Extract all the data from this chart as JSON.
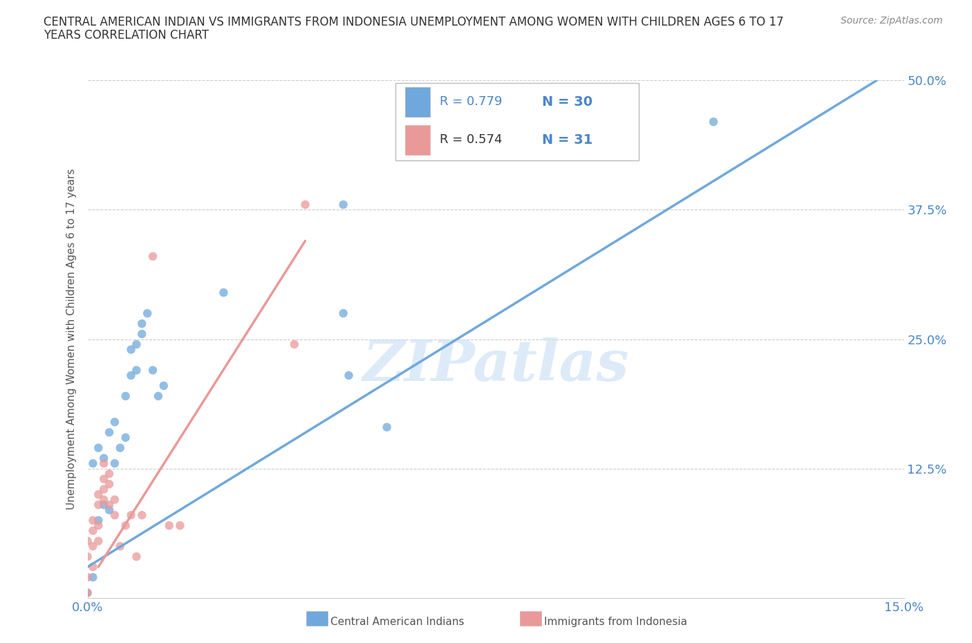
{
  "title_line1": "CENTRAL AMERICAN INDIAN VS IMMIGRANTS FROM INDONESIA UNEMPLOYMENT AMONG WOMEN WITH CHILDREN AGES 6 TO 17",
  "title_line2": "YEARS CORRELATION CHART",
  "source": "Source: ZipAtlas.com",
  "ylabel": "Unemployment Among Women with Children Ages 6 to 17 years",
  "xlim": [
    0.0,
    0.15
  ],
  "ylim": [
    0.0,
    0.5
  ],
  "xticks": [
    0.0,
    0.025,
    0.05,
    0.075,
    0.1,
    0.125,
    0.15
  ],
  "xticklabels": [
    "0.0%",
    "",
    "",
    "",
    "",
    "",
    "15.0%"
  ],
  "yticks": [
    0.0,
    0.125,
    0.25,
    0.375,
    0.5
  ],
  "yticklabels_right": [
    "",
    "12.5%",
    "25.0%",
    "37.5%",
    "50.0%"
  ],
  "blue_color": "#6fa8dc",
  "pink_color": "#ea9999",
  "tick_label_color": "#4a86c8",
  "blue_r": "0.779",
  "blue_n": "30",
  "pink_r": "0.574",
  "pink_n": "31",
  "watermark": "ZIPatlas",
  "legend_label_blue": "Central American Indians",
  "legend_label_pink": "Immigrants from Indonesia",
  "blue_scatter": [
    [
      0.0,
      0.005
    ],
    [
      0.001,
      0.02
    ],
    [
      0.001,
      0.13
    ],
    [
      0.002,
      0.145
    ],
    [
      0.002,
      0.075
    ],
    [
      0.003,
      0.09
    ],
    [
      0.003,
      0.135
    ],
    [
      0.004,
      0.085
    ],
    [
      0.004,
      0.16
    ],
    [
      0.005,
      0.13
    ],
    [
      0.005,
      0.17
    ],
    [
      0.006,
      0.145
    ],
    [
      0.007,
      0.155
    ],
    [
      0.007,
      0.195
    ],
    [
      0.008,
      0.215
    ],
    [
      0.008,
      0.24
    ],
    [
      0.009,
      0.22
    ],
    [
      0.009,
      0.245
    ],
    [
      0.01,
      0.255
    ],
    [
      0.01,
      0.265
    ],
    [
      0.011,
      0.275
    ],
    [
      0.012,
      0.22
    ],
    [
      0.013,
      0.195
    ],
    [
      0.014,
      0.205
    ],
    [
      0.025,
      0.295
    ],
    [
      0.047,
      0.275
    ],
    [
      0.047,
      0.38
    ],
    [
      0.048,
      0.215
    ],
    [
      0.055,
      0.165
    ],
    [
      0.115,
      0.46
    ]
  ],
  "pink_scatter": [
    [
      0.0,
      0.005
    ],
    [
      0.0,
      0.02
    ],
    [
      0.0,
      0.04
    ],
    [
      0.0,
      0.055
    ],
    [
      0.001,
      0.03
    ],
    [
      0.001,
      0.05
    ],
    [
      0.001,
      0.065
    ],
    [
      0.001,
      0.075
    ],
    [
      0.002,
      0.055
    ],
    [
      0.002,
      0.07
    ],
    [
      0.002,
      0.09
    ],
    [
      0.002,
      0.1
    ],
    [
      0.003,
      0.095
    ],
    [
      0.003,
      0.105
    ],
    [
      0.003,
      0.115
    ],
    [
      0.003,
      0.13
    ],
    [
      0.004,
      0.09
    ],
    [
      0.004,
      0.11
    ],
    [
      0.004,
      0.12
    ],
    [
      0.005,
      0.08
    ],
    [
      0.005,
      0.095
    ],
    [
      0.006,
      0.05
    ],
    [
      0.007,
      0.07
    ],
    [
      0.008,
      0.08
    ],
    [
      0.009,
      0.04
    ],
    [
      0.01,
      0.08
    ],
    [
      0.012,
      0.33
    ],
    [
      0.015,
      0.07
    ],
    [
      0.017,
      0.07
    ],
    [
      0.038,
      0.245
    ],
    [
      0.04,
      0.38
    ]
  ],
  "blue_trendline": [
    [
      0.0,
      0.03
    ],
    [
      0.145,
      0.5
    ]
  ],
  "pink_trendline": [
    [
      0.002,
      0.03
    ],
    [
      0.04,
      0.345
    ]
  ]
}
